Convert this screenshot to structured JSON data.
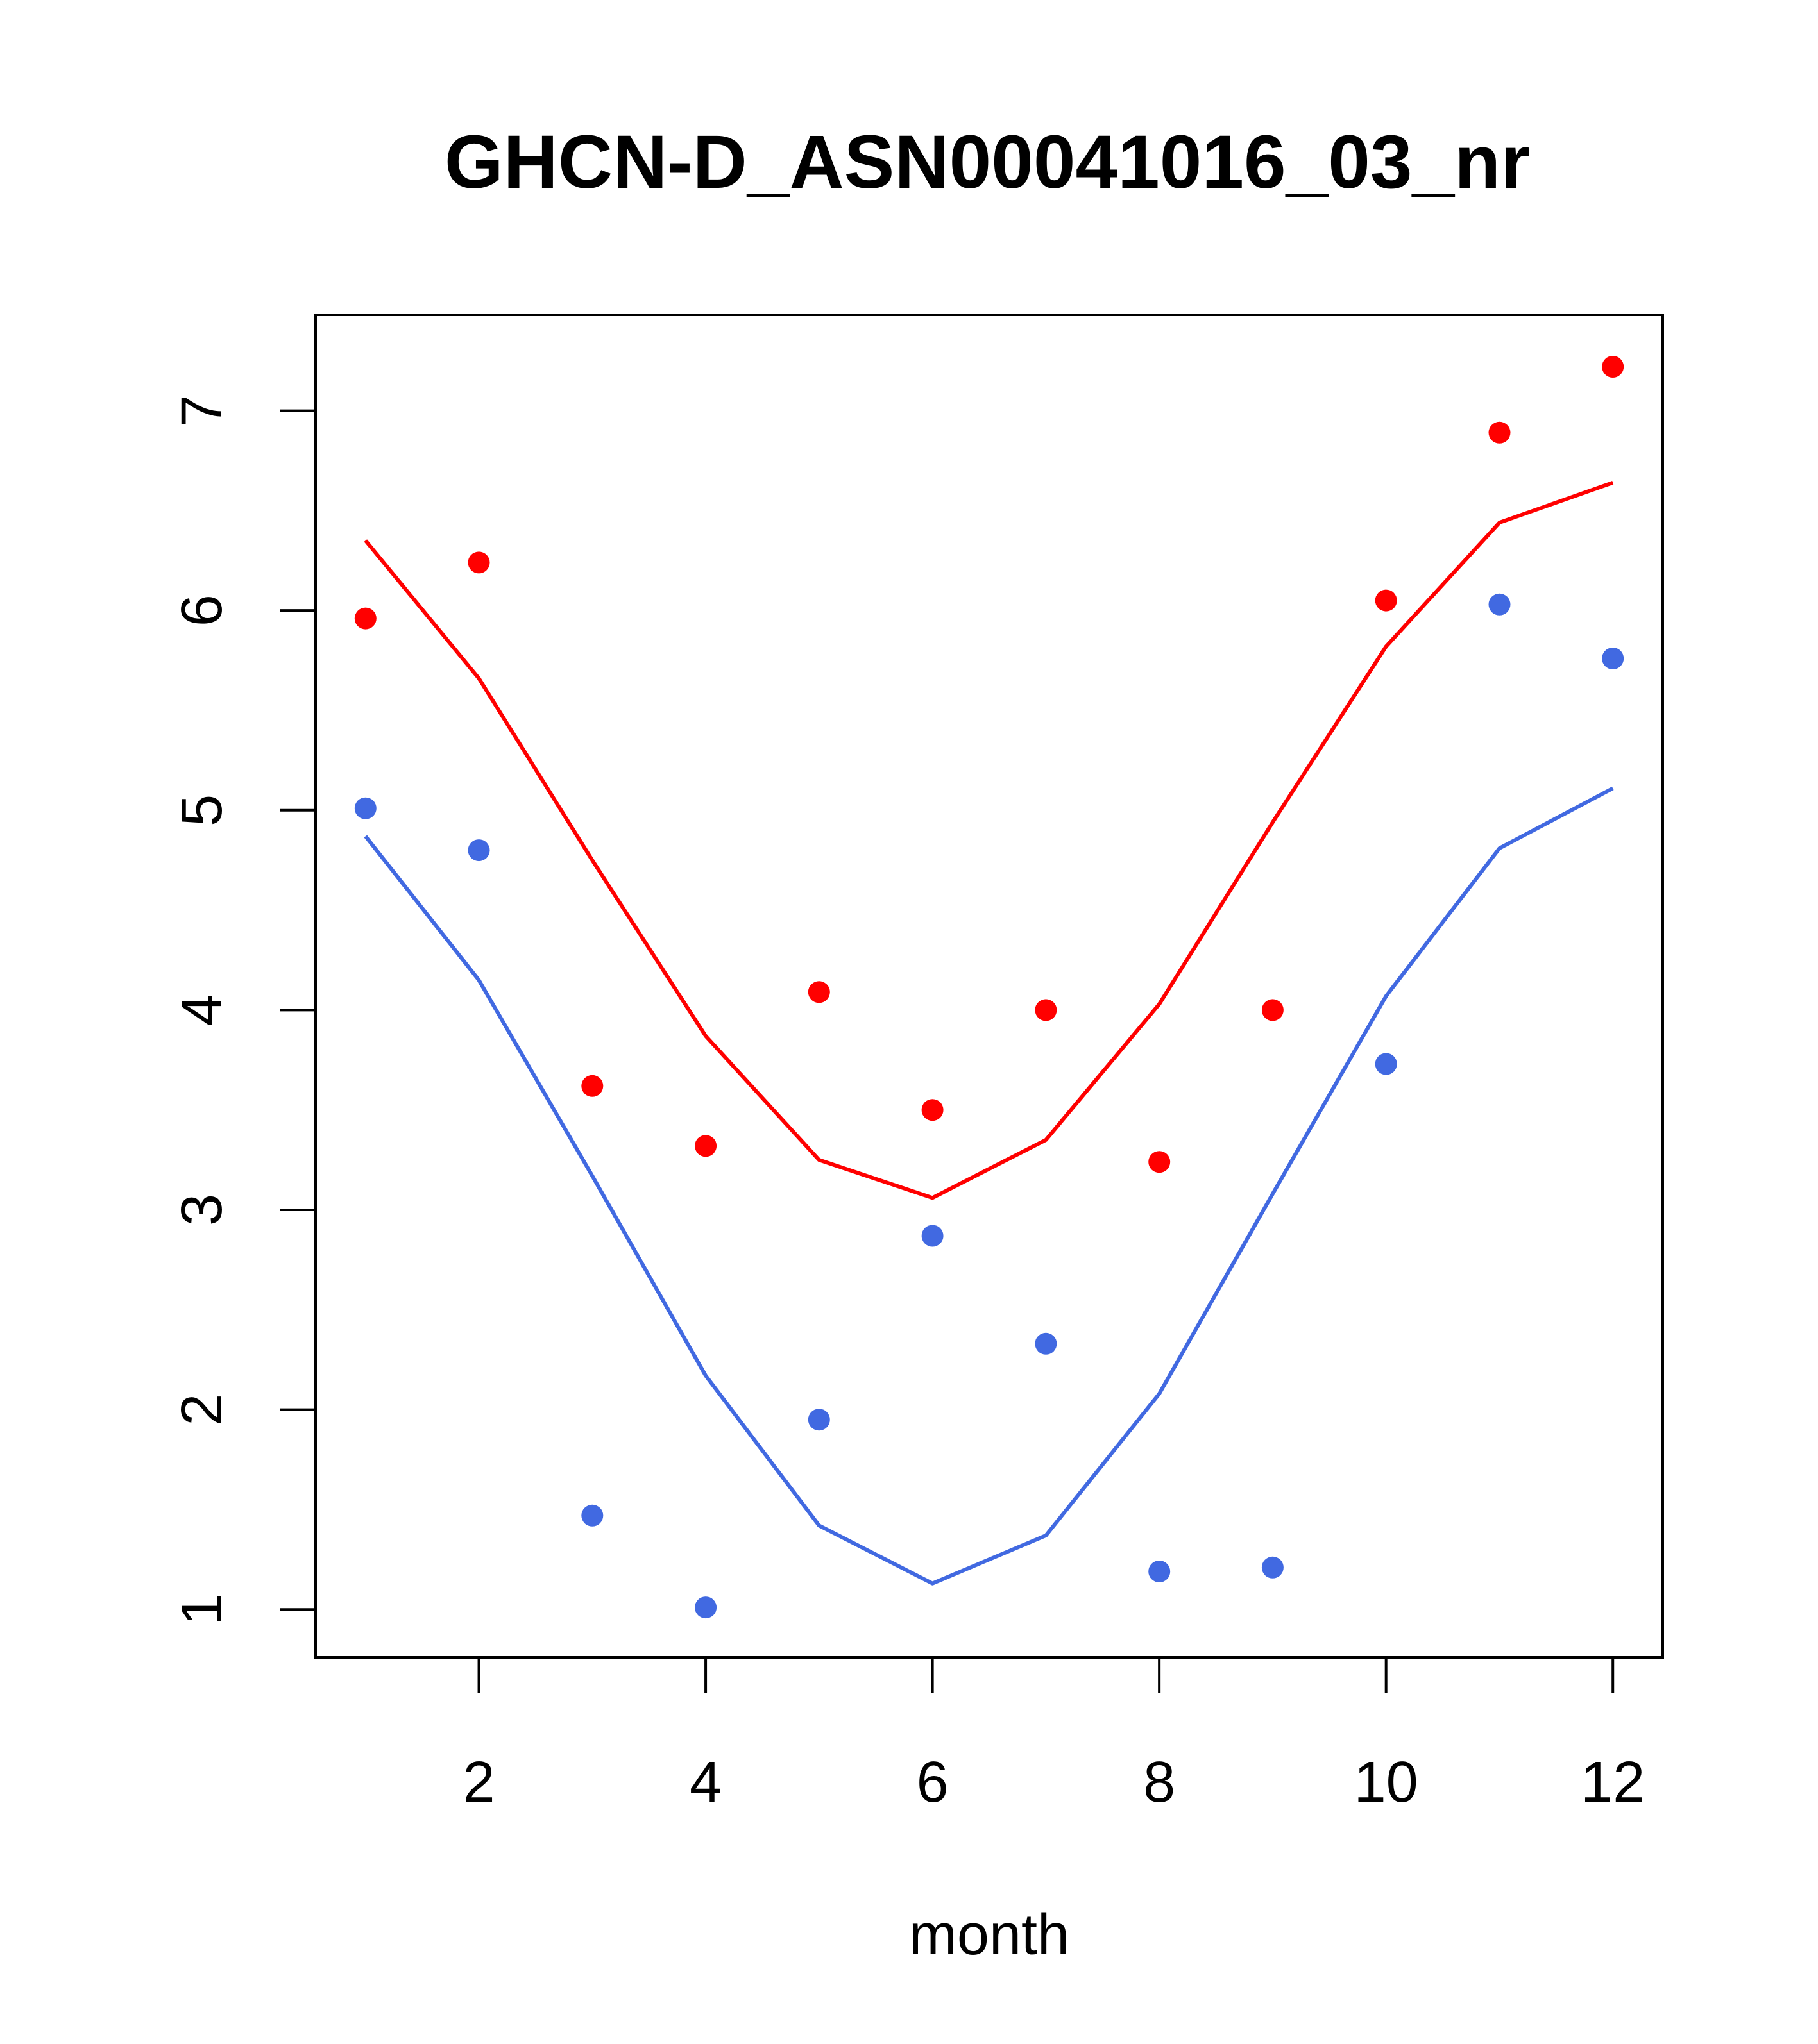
{
  "chart_data": {
    "type": "scatter",
    "title": "GHCN-D_ASN00041016_03_nr",
    "xlabel": "month",
    "ylabel": "",
    "xlim": [
      0.56,
      12.44
    ],
    "ylim": [
      0.76,
      7.48
    ],
    "xticks": [
      2,
      4,
      6,
      8,
      10,
      12
    ],
    "yticks": [
      1,
      2,
      3,
      4,
      5,
      6,
      7
    ],
    "grid": false,
    "series": [
      {
        "color": "#FF0000",
        "points": {
          "x": [
            1,
            2,
            3,
            4,
            5,
            6,
            7,
            8,
            9,
            10,
            11,
            12
          ],
          "y": [
            5.96,
            6.24,
            3.62,
            3.32,
            4.09,
            3.5,
            4.0,
            3.24,
            4.0,
            6.05,
            6.89,
            7.22
          ]
        },
        "line": {
          "x": [
            1,
            2,
            3,
            4,
            5,
            6,
            7,
            8,
            9,
            10,
            11,
            12
          ],
          "y": [
            6.35,
            5.66,
            4.75,
            3.87,
            3.25,
            3.06,
            3.35,
            4.03,
            4.94,
            5.82,
            6.44,
            6.64
          ]
        }
      },
      {
        "color": "#4169E1",
        "points": {
          "x": [
            1,
            2,
            3,
            4,
            5,
            6,
            7,
            8,
            9,
            10,
            11,
            12
          ],
          "y": [
            5.01,
            4.8,
            1.47,
            1.01,
            1.95,
            2.87,
            2.33,
            1.19,
            1.21,
            3.73,
            6.03,
            5.76
          ]
        },
        "line": {
          "x": [
            1,
            2,
            3,
            4,
            5,
            6,
            7,
            8,
            9,
            10,
            11,
            12
          ],
          "y": [
            4.87,
            4.15,
            3.17,
            2.17,
            1.42,
            1.13,
            1.37,
            2.08,
            3.08,
            4.07,
            4.81,
            5.11
          ]
        }
      }
    ]
  }
}
